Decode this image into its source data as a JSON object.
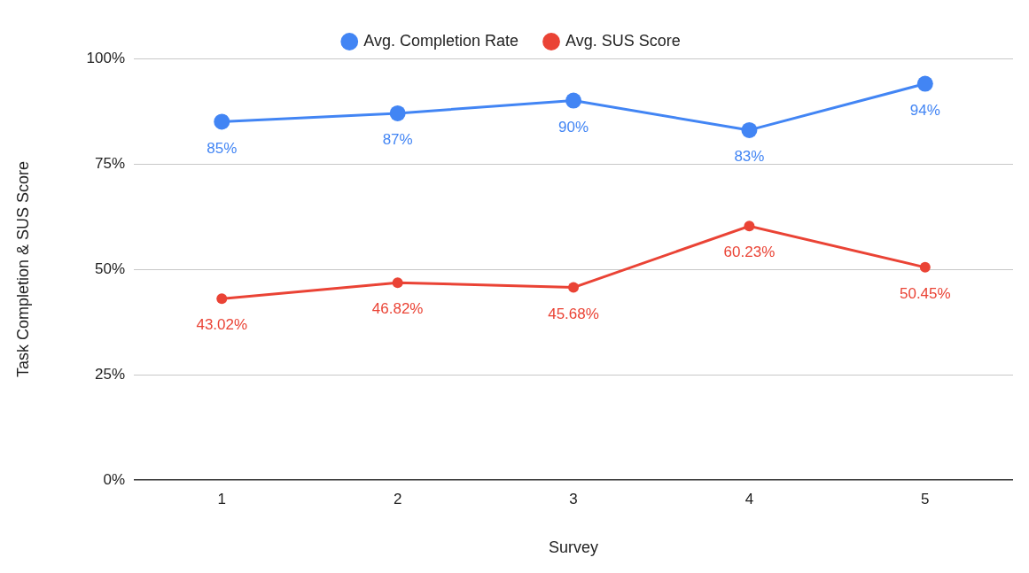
{
  "chart_data": {
    "type": "line",
    "xlabel": "Survey",
    "ylabel": "Task Completion & SUS Score",
    "categories": [
      "1",
      "2",
      "3",
      "4",
      "5"
    ],
    "series": [
      {
        "name": "Avg. Completion Rate",
        "color": "#4285f4",
        "values": [
          85,
          87,
          90,
          83,
          94
        ],
        "value_labels": [
          "85%",
          "87%",
          "90%",
          "83%",
          "94%"
        ]
      },
      {
        "name": "Avg. SUS Score",
        "color": "#ea4335",
        "values": [
          43.02,
          46.82,
          45.68,
          60.23,
          50.45
        ],
        "value_labels": [
          "43.02%",
          "46.82%",
          "45.68%",
          "60.23%",
          "50.45%"
        ]
      }
    ],
    "ylim": [
      0,
      100
    ],
    "yticks": [
      {
        "value": 0,
        "label": "0%"
      },
      {
        "value": 25,
        "label": "25%"
      },
      {
        "value": 50,
        "label": "50%"
      },
      {
        "value": 75,
        "label": "75%"
      },
      {
        "value": 100,
        "label": "100%"
      }
    ],
    "grid": "y",
    "legend": "top",
    "marker": "circle",
    "line_style": "solid"
  }
}
